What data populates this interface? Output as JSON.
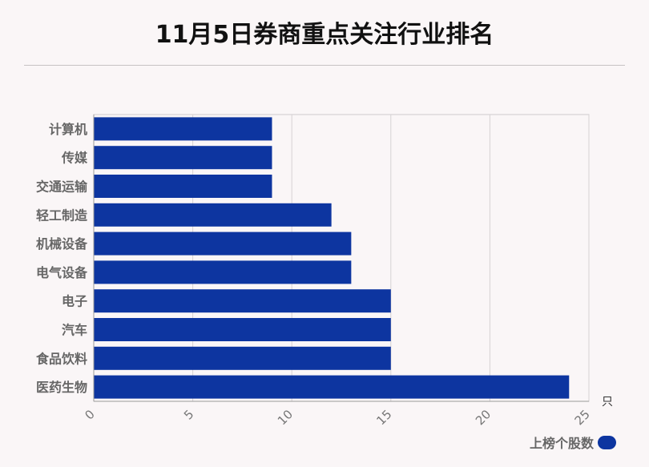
{
  "title": "11月5日券商重点关注行业排名",
  "chart_data": {
    "type": "bar",
    "orientation": "horizontal",
    "categories": [
      "计算机",
      "传媒",
      "交通运输",
      "轻工制造",
      "机械设备",
      "电气设备",
      "电子",
      "汽车",
      "食品饮料",
      "医药生物"
    ],
    "series": [
      {
        "name": "上榜个股数",
        "values": [
          9,
          9,
          9,
          12,
          13,
          13,
          15,
          15,
          15,
          24
        ]
      }
    ],
    "x_ticks": [
      "0",
      "5",
      "10",
      "15",
      "20",
      "25"
    ],
    "xlim": [
      0,
      25
    ],
    "unit": "只",
    "grid": true,
    "legend_position": "bottom-right"
  },
  "colors": {
    "bar": "#0d35a0"
  }
}
